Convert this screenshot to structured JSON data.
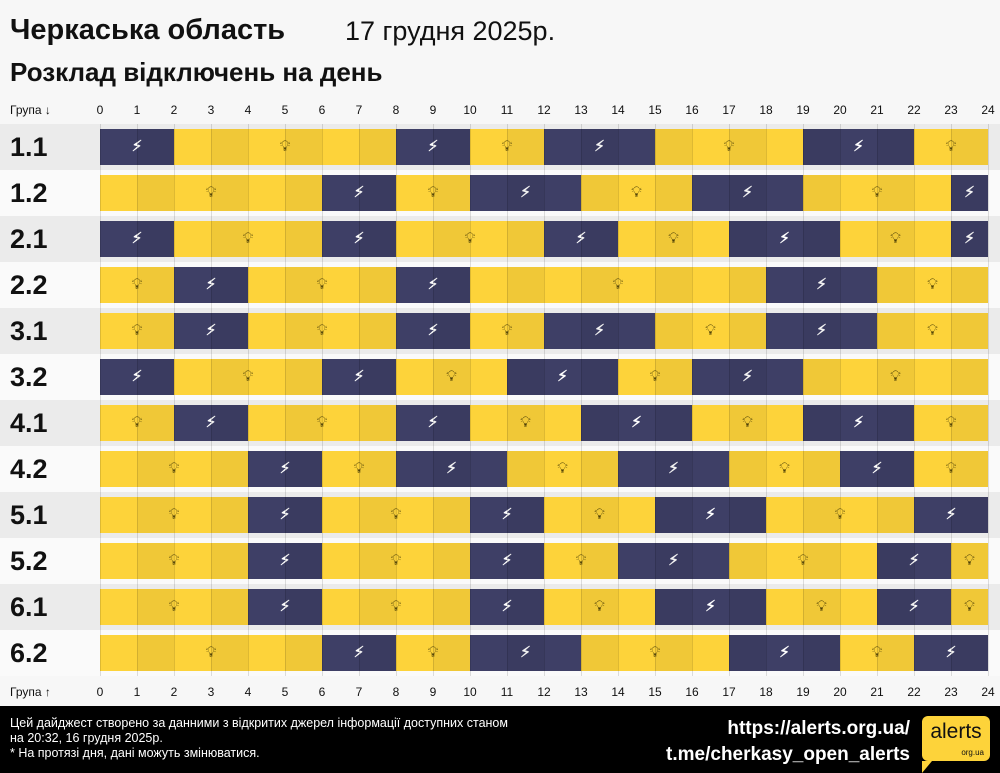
{
  "header": {
    "region": "Черкаська область",
    "date": "17 грудня 2025р.",
    "subtitle": "Розклад відключень на день"
  },
  "axis": {
    "top_label": "Група ↓",
    "bottom_label": "Група ↑",
    "hours": [
      "0",
      "1",
      "2",
      "3",
      "4",
      "5",
      "6",
      "7",
      "8",
      "9",
      "10",
      "11",
      "12",
      "13",
      "14",
      "15",
      "16",
      "17",
      "18",
      "19",
      "20",
      "21",
      "22",
      "23",
      "24"
    ]
  },
  "colors": {
    "power_on": "#fdd33a",
    "power_off": "#3e3f66"
  },
  "icons": {
    "on": "lightbulb-icon",
    "off": "power-off-icon"
  },
  "groups": [
    {
      "name": "1.1",
      "segments": [
        [
          "off",
          0,
          2
        ],
        [
          "on",
          2,
          8
        ],
        [
          "off",
          8,
          10
        ],
        [
          "on",
          10,
          12
        ],
        [
          "off",
          12,
          15
        ],
        [
          "on",
          15,
          19
        ],
        [
          "off",
          19,
          22
        ],
        [
          "on",
          22,
          24
        ]
      ]
    },
    {
      "name": "1.2",
      "segments": [
        [
          "on",
          0,
          6
        ],
        [
          "off",
          6,
          8
        ],
        [
          "on",
          8,
          10
        ],
        [
          "off",
          10,
          13
        ],
        [
          "on",
          13,
          16
        ],
        [
          "off",
          16,
          19
        ],
        [
          "on",
          19,
          23
        ],
        [
          "off",
          23,
          24
        ]
      ]
    },
    {
      "name": "2.1",
      "segments": [
        [
          "off",
          0,
          2
        ],
        [
          "on",
          2,
          6
        ],
        [
          "off",
          6,
          8
        ],
        [
          "on",
          8,
          12
        ],
        [
          "off",
          12,
          14
        ],
        [
          "on",
          14,
          17
        ],
        [
          "off",
          17,
          20
        ],
        [
          "on",
          20,
          23
        ],
        [
          "off",
          23,
          24
        ]
      ]
    },
    {
      "name": "2.2",
      "segments": [
        [
          "on",
          0,
          2
        ],
        [
          "off",
          2,
          4
        ],
        [
          "on",
          4,
          8
        ],
        [
          "off",
          8,
          10
        ],
        [
          "on",
          10,
          18
        ],
        [
          "off",
          18,
          21
        ],
        [
          "on",
          21,
          24
        ]
      ]
    },
    {
      "name": "3.1",
      "segments": [
        [
          "on",
          0,
          2
        ],
        [
          "off",
          2,
          4
        ],
        [
          "on",
          4,
          8
        ],
        [
          "off",
          8,
          10
        ],
        [
          "on",
          10,
          12
        ],
        [
          "off",
          12,
          15
        ],
        [
          "on",
          15,
          18
        ],
        [
          "off",
          18,
          21
        ],
        [
          "on",
          21,
          24
        ]
      ]
    },
    {
      "name": "3.2",
      "segments": [
        [
          "off",
          0,
          2
        ],
        [
          "on",
          2,
          6
        ],
        [
          "off",
          6,
          8
        ],
        [
          "on",
          8,
          11
        ],
        [
          "off",
          11,
          14
        ],
        [
          "on",
          14,
          16
        ],
        [
          "off",
          16,
          19
        ],
        [
          "on",
          19,
          24
        ]
      ]
    },
    {
      "name": "4.1",
      "segments": [
        [
          "on",
          0,
          2
        ],
        [
          "off",
          2,
          4
        ],
        [
          "on",
          4,
          8
        ],
        [
          "off",
          8,
          10
        ],
        [
          "on",
          10,
          13
        ],
        [
          "off",
          13,
          16
        ],
        [
          "on",
          16,
          19
        ],
        [
          "off",
          19,
          22
        ],
        [
          "on",
          22,
          24
        ]
      ]
    },
    {
      "name": "4.2",
      "segments": [
        [
          "on",
          0,
          4
        ],
        [
          "off",
          4,
          6
        ],
        [
          "on",
          6,
          8
        ],
        [
          "off",
          8,
          11
        ],
        [
          "on",
          11,
          14
        ],
        [
          "off",
          14,
          17
        ],
        [
          "on",
          17,
          20
        ],
        [
          "off",
          20,
          22
        ],
        [
          "on",
          22,
          24
        ]
      ]
    },
    {
      "name": "5.1",
      "segments": [
        [
          "on",
          0,
          4
        ],
        [
          "off",
          4,
          6
        ],
        [
          "on",
          6,
          10
        ],
        [
          "off",
          10,
          12
        ],
        [
          "on",
          12,
          15
        ],
        [
          "off",
          15,
          18
        ],
        [
          "on",
          18,
          22
        ],
        [
          "off",
          22,
          24
        ]
      ]
    },
    {
      "name": "5.2",
      "segments": [
        [
          "on",
          0,
          4
        ],
        [
          "off",
          4,
          6
        ],
        [
          "on",
          6,
          10
        ],
        [
          "off",
          10,
          12
        ],
        [
          "on",
          12,
          14
        ],
        [
          "off",
          14,
          17
        ],
        [
          "on",
          17,
          21
        ],
        [
          "off",
          21,
          23
        ],
        [
          "on",
          23,
          24
        ]
      ]
    },
    {
      "name": "6.1",
      "segments": [
        [
          "on",
          0,
          4
        ],
        [
          "off",
          4,
          6
        ],
        [
          "on",
          6,
          10
        ],
        [
          "off",
          10,
          12
        ],
        [
          "on",
          12,
          15
        ],
        [
          "off",
          15,
          18
        ],
        [
          "on",
          18,
          21
        ],
        [
          "off",
          21,
          23
        ],
        [
          "on",
          23,
          24
        ]
      ]
    },
    {
      "name": "6.2",
      "segments": [
        [
          "on",
          0,
          6
        ],
        [
          "off",
          6,
          8
        ],
        [
          "on",
          8,
          10
        ],
        [
          "off",
          10,
          13
        ],
        [
          "on",
          13,
          17
        ],
        [
          "off",
          17,
          20
        ],
        [
          "on",
          20,
          22
        ],
        [
          "off",
          22,
          24
        ]
      ]
    }
  ],
  "footer": {
    "note1": "Цей дайджест створено за данними з відкритих джерел інформації доступних станом на 20:32, 16 грудня 2025р.",
    "note2": "* На протязі дня, дані можуть змінюватися.",
    "link1": "https://alerts.org.ua/",
    "link2": "t.me/cherkasy_open_alerts",
    "logo_main": "alerts",
    "logo_sub": "org.ua"
  }
}
